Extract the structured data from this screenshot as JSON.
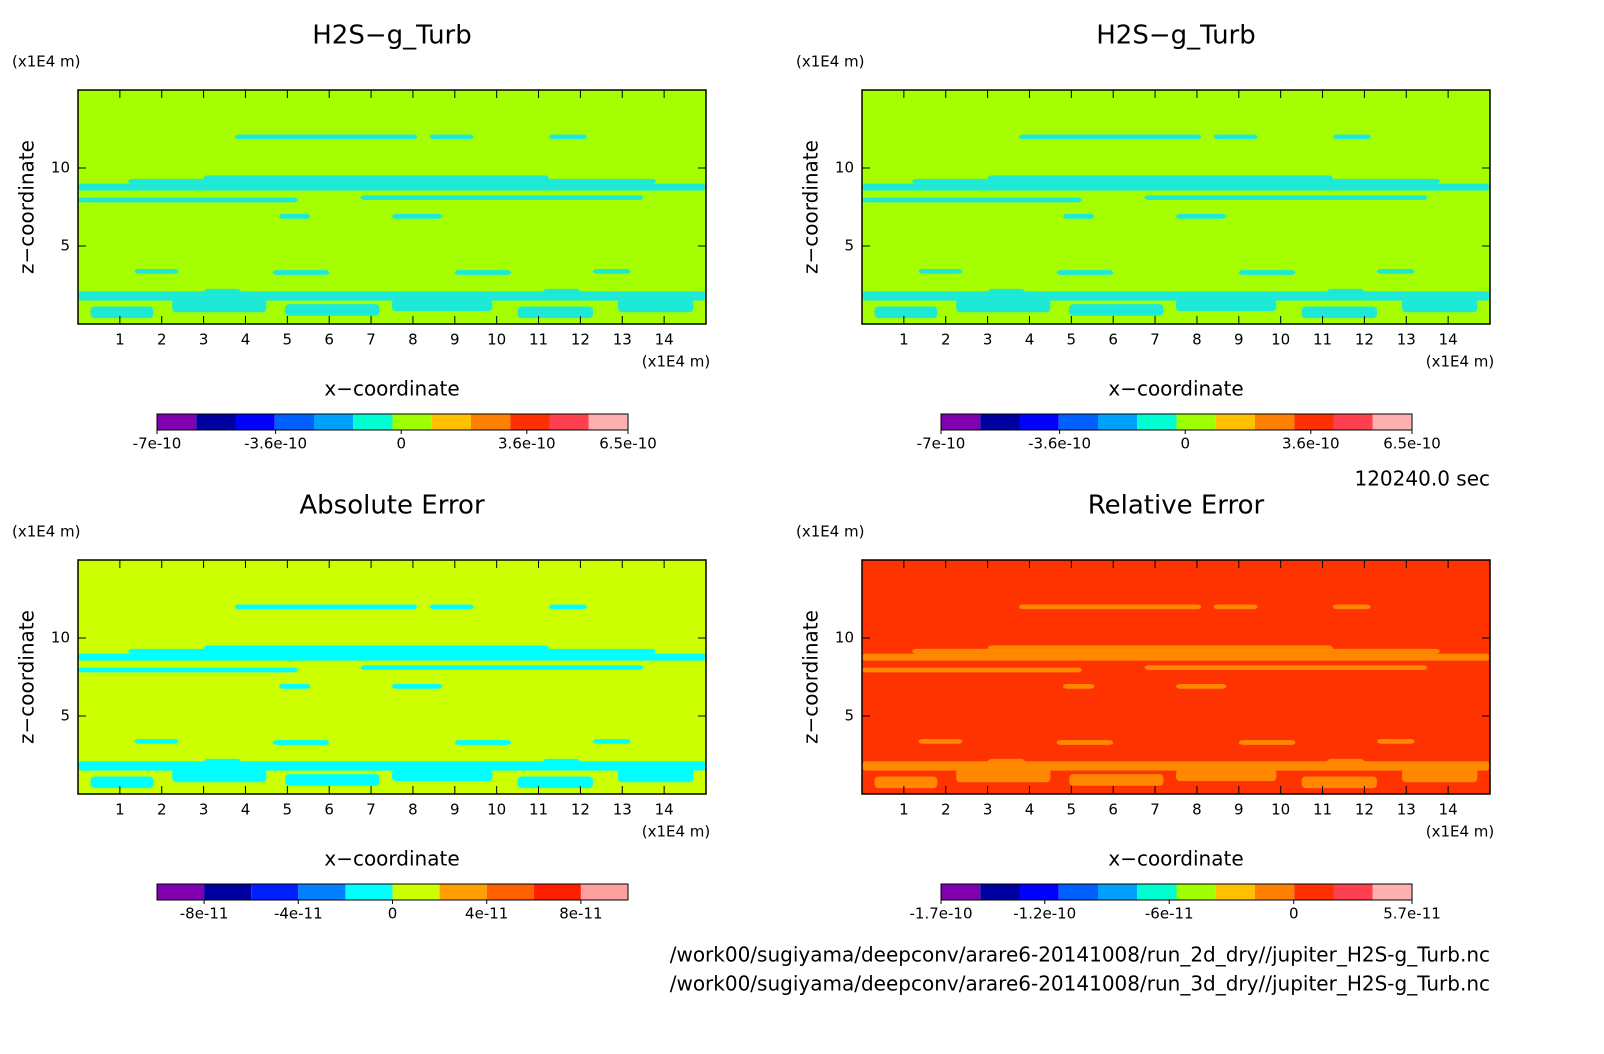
{
  "panels": [
    {
      "chart_data": {
        "type": "contour",
        "title": "H2S−g_Turb",
        "y_unit": "(x1E4 m)",
        "x_unit": "(x1E4 m)",
        "xlabel": "x−coordinate",
        "ylabel": "z−coordinate",
        "xlim": [
          0,
          15
        ],
        "xticks": [
          1,
          2,
          3,
          4,
          5,
          6,
          7,
          8,
          9,
          10,
          11,
          12,
          13,
          14
        ],
        "ylim": [
          0,
          15
        ],
        "yticks": [
          5,
          10
        ],
        "background_color": "#a6ff00",
        "feature_color": "#1de9d6",
        "colorbar": {
          "lim": [
            -7e-10,
            6.5e-10
          ],
          "ticks": [
            -7e-10,
            -3.6e-10,
            0,
            3.6e-10,
            6.5e-10
          ],
          "colors": [
            "#8000b0",
            "#0000a0",
            "#0000ff",
            "#0060ff",
            "#00a0ff",
            "#00ffd0",
            "#a0ff00",
            "#ffc000",
            "#ff8000",
            "#ff3000",
            "#ff4050",
            "#ffb0b0"
          ]
        }
      }
    },
    {
      "chart_data": {
        "type": "contour",
        "title": "H2S−g_Turb",
        "y_unit": "(x1E4 m)",
        "x_unit": "(x1E4 m)",
        "xlabel": "x−coordinate",
        "ylabel": "z−coordinate",
        "xlim": [
          0,
          15
        ],
        "xticks": [
          1,
          2,
          3,
          4,
          5,
          6,
          7,
          8,
          9,
          10,
          11,
          12,
          13,
          14
        ],
        "ylim": [
          0,
          15
        ],
        "yticks": [
          5,
          10
        ],
        "background_color": "#a6ff00",
        "feature_color": "#1de9d6",
        "colorbar": {
          "lim": [
            -7e-10,
            6.5e-10
          ],
          "ticks": [
            -7e-10,
            -3.6e-10,
            0,
            3.6e-10,
            6.5e-10
          ],
          "colors": [
            "#8000b0",
            "#0000a0",
            "#0000ff",
            "#0060ff",
            "#00a0ff",
            "#00ffd0",
            "#a0ff00",
            "#ffc000",
            "#ff8000",
            "#ff3000",
            "#ff4050",
            "#ffb0b0"
          ]
        }
      }
    },
    {
      "chart_data": {
        "type": "contour",
        "title": "Absolute Error",
        "y_unit": "(x1E4 m)",
        "x_unit": "(x1E4 m)",
        "xlabel": "x−coordinate",
        "ylabel": "z−coordinate",
        "xlim": [
          0,
          15
        ],
        "xticks": [
          1,
          2,
          3,
          4,
          5,
          6,
          7,
          8,
          9,
          10,
          11,
          12,
          13,
          14
        ],
        "ylim": [
          0,
          15
        ],
        "yticks": [
          5,
          10
        ],
        "background_color": "#ccff00",
        "feature_color": "#00ffff",
        "colorbar": {
          "lim": [
            -1e-10,
            1e-10
          ],
          "ticks": [
            -8e-11,
            -4e-11,
            0,
            4e-11,
            8e-11
          ],
          "colors": [
            "#8000b0",
            "#0000a0",
            "#0020ff",
            "#0080ff",
            "#00ffff",
            "#ccff00",
            "#ffa000",
            "#ff6000",
            "#ff2000",
            "#ffa0a0"
          ]
        }
      }
    },
    {
      "chart_data": {
        "type": "contour",
        "title": "Relative Error",
        "y_unit": "(x1E4 m)",
        "x_unit": "(x1E4 m)",
        "xlabel": "x−coordinate",
        "ylabel": "z−coordinate",
        "xlim": [
          0,
          15
        ],
        "xticks": [
          1,
          2,
          3,
          4,
          5,
          6,
          7,
          8,
          9,
          10,
          11,
          12,
          13,
          14
        ],
        "ylim": [
          0,
          15
        ],
        "yticks": [
          5,
          10
        ],
        "background_color": "#ff3300",
        "feature_color": "#ff8800",
        "colorbar": {
          "lim": [
            -1.7e-10,
            5.7e-11
          ],
          "ticks": [
            -1.7e-10,
            -1.2e-10,
            -6e-11,
            0,
            5.7e-11
          ],
          "colors": [
            "#8000b0",
            "#0000a0",
            "#0000ff",
            "#0060ff",
            "#00a0ff",
            "#00ffd0",
            "#a0ff00",
            "#ffc000",
            "#ff8000",
            "#ff3000",
            "#ff4050",
            "#ffb0b0"
          ]
        }
      }
    }
  ],
  "time": "120240.0 sec",
  "files": [
    "/work00/sugiyama/deepconv/arare6-20141008/run_2d_dry//jupiter_H2S-g_Turb.nc",
    "/work00/sugiyama/deepconv/arare6-20141008/run_3d_dry//jupiter_H2S-g_Turb.nc"
  ]
}
